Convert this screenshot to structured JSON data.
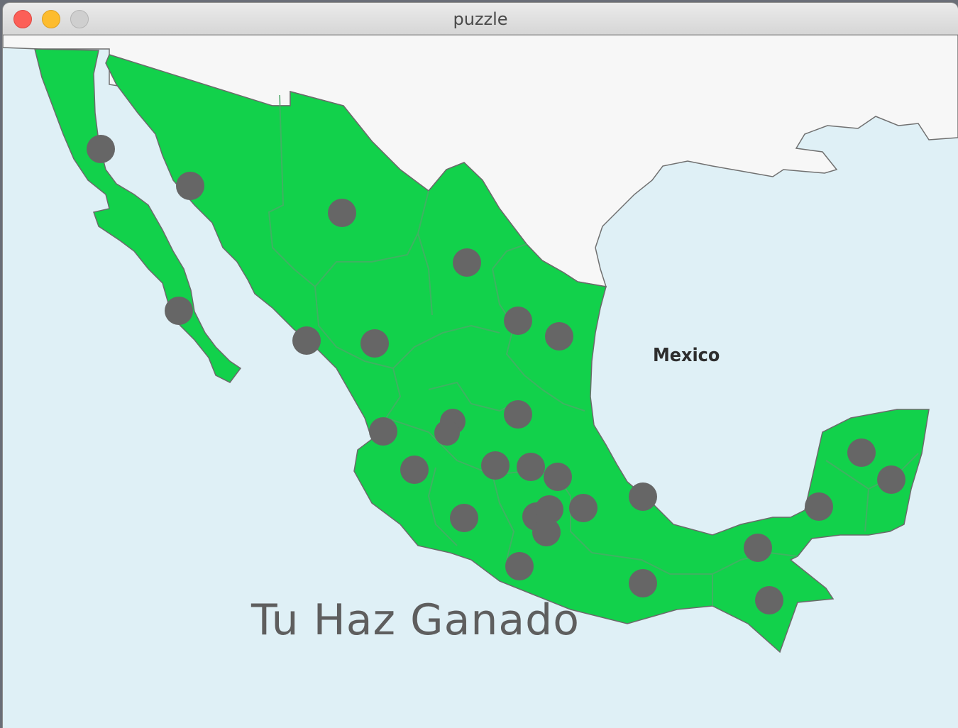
{
  "window": {
    "title": "puzzle"
  },
  "map": {
    "country_label": "Mexico",
    "state_color": "#12d14b",
    "piece_color": "#666666",
    "pieces": [
      {
        "id": "baja-california-n"
      },
      {
        "id": "sonora"
      },
      {
        "id": "chihuahua"
      },
      {
        "id": "baja-california-s"
      },
      {
        "id": "coahuila"
      },
      {
        "id": "sinaloa"
      },
      {
        "id": "durango"
      },
      {
        "id": "nuevo-leon"
      },
      {
        "id": "tamaulipas"
      },
      {
        "id": "zacatecas"
      },
      {
        "id": "san-luis-potosi"
      },
      {
        "id": "nayarit"
      },
      {
        "id": "aguascalientes"
      },
      {
        "id": "jalisco"
      },
      {
        "id": "guanajuato"
      },
      {
        "id": "queretaro"
      },
      {
        "id": "hidalgo"
      },
      {
        "id": "colima"
      },
      {
        "id": "michoacan"
      },
      {
        "id": "estado-de-mexico"
      },
      {
        "id": "cdmx"
      },
      {
        "id": "morelos"
      },
      {
        "id": "tlaxcala"
      },
      {
        "id": "puebla"
      },
      {
        "id": "veracruz"
      },
      {
        "id": "guerrero"
      },
      {
        "id": "oaxaca"
      },
      {
        "id": "tabasco"
      },
      {
        "id": "chiapas"
      },
      {
        "id": "campeche"
      },
      {
        "id": "yucatan"
      },
      {
        "id": "quintana-roo"
      }
    ]
  },
  "message": {
    "text": "Tu Haz Ganado"
  }
}
